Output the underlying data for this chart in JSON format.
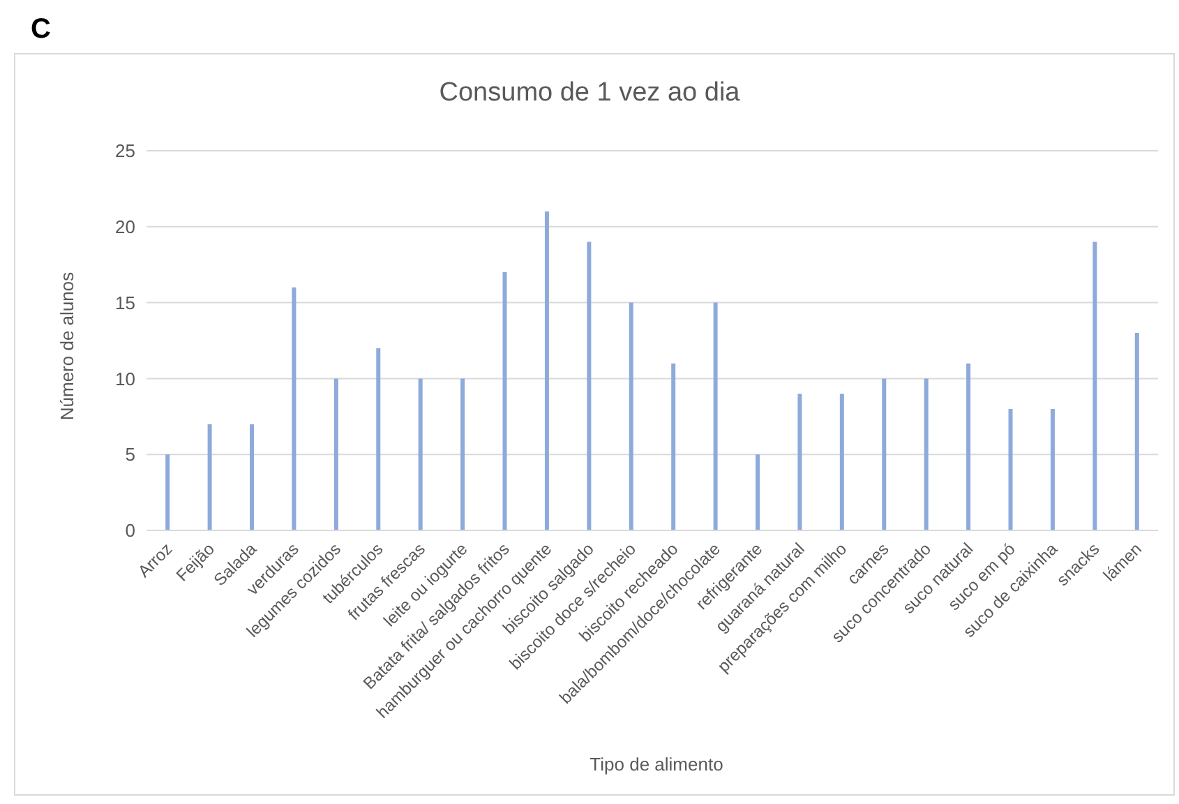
{
  "chart_data": {
    "type": "bar",
    "title": "Consumo de 1 vez ao dia",
    "xlabel": "Tipo de alimento",
    "ylabel": "Número de alunos",
    "annotations": [
      "C"
    ],
    "categories": [
      "Arroz",
      "Feijão",
      "Salada",
      "verduras",
      "legumes cozidos",
      "tubérculos",
      "frutas frescas",
      "leite ou iogurte",
      "Batata frita/ salgados fritos",
      "hamburguer ou cachorro quente",
      "biscoito salgado",
      "biscoito doce s/recheio",
      "biscoito recheado",
      "bala/bombom/doce/chocolate",
      "refrigerante",
      "guaraná natural",
      "preparações com milho",
      "carnes",
      "suco concentrado",
      "suco natural",
      "suco em pó",
      "suco de caixinha",
      "snacks",
      "lámen"
    ],
    "values": [
      5,
      7,
      7,
      16,
      10,
      12,
      10,
      10,
      17,
      21,
      19,
      15,
      11,
      15,
      5,
      9,
      9,
      10,
      10,
      11,
      8,
      8,
      19,
      13
    ],
    "color": "#8eaadb",
    "ylim": [
      0,
      25
    ],
    "yticks": [
      0,
      5,
      10,
      15,
      20,
      25
    ],
    "grid": "y"
  }
}
